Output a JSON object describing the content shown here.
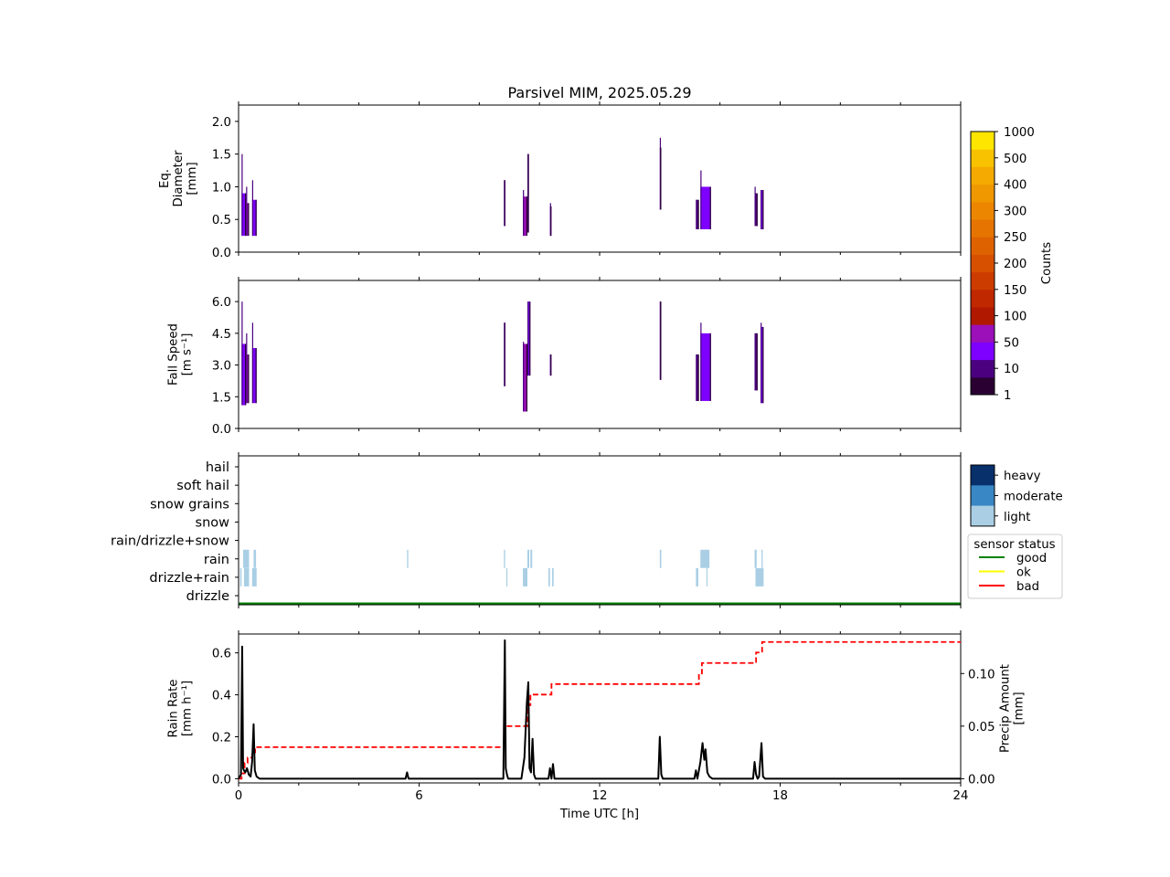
{
  "chart_data": {
    "title": "Parsivel MIM, 2025.05.29",
    "x_axis": {
      "label": "Time UTC [h]",
      "ticks": [
        0,
        6,
        12,
        18,
        24
      ],
      "range": [
        0,
        24
      ]
    },
    "colors": {
      "counts_scale": [
        "#2a0033",
        "#4b0080",
        "#7e00ff",
        "#9b10b8",
        "#b01800",
        "#c02800",
        "#cc3c00",
        "#d65000",
        "#df6200",
        "#e67400",
        "#ec8600",
        "#f09800",
        "#f4aa00",
        "#f8c200",
        "#ffe600"
      ],
      "light": "#aacfe5",
      "moderate": "#3a87c5",
      "heavy": "#08306b",
      "rate_line": "#000000",
      "precip_line": "#ff0000"
    },
    "panels": [
      {
        "type": "heatmap",
        "ylabel": [
          "Eq.",
          "Diameter",
          "[mm]"
        ],
        "yticks": [
          "0.0",
          "0.5",
          "1.0",
          "1.5",
          "2.0"
        ],
        "ylim": [
          0,
          2.25
        ],
        "events": [
          {
            "t0": 0.1,
            "t1": 0.25,
            "ymin": 0.25,
            "ymax": 0.9,
            "peak": 1.5,
            "level": 2
          },
          {
            "t0": 0.25,
            "t1": 0.35,
            "ymin": 0.25,
            "ymax": 0.75,
            "peak": 1.0,
            "level": 3
          },
          {
            "t0": 0.45,
            "t1": 0.6,
            "ymin": 0.25,
            "ymax": 0.8,
            "peak": 1.1,
            "level": 2
          },
          {
            "t0": 8.82,
            "t1": 8.86,
            "ymin": 0.4,
            "ymax": 1.1,
            "peak": 1.1,
            "level": 2
          },
          {
            "t0": 9.45,
            "t1": 9.6,
            "ymin": 0.25,
            "ymax": 0.85,
            "peak": 0.95,
            "level": 3
          },
          {
            "t0": 9.6,
            "t1": 9.65,
            "ymin": 0.3,
            "ymax": 1.5,
            "peak": 1.5,
            "level": 2
          },
          {
            "t0": 10.35,
            "t1": 10.4,
            "ymin": 0.25,
            "ymax": 0.7,
            "peak": 0.75,
            "level": 2
          },
          {
            "t0": 14.0,
            "t1": 14.05,
            "ymin": 0.65,
            "ymax": 1.6,
            "peak": 1.75,
            "level": 1
          },
          {
            "t0": 15.2,
            "t1": 15.3,
            "ymin": 0.35,
            "ymax": 0.8,
            "peak": 0.8,
            "level": 1
          },
          {
            "t0": 15.35,
            "t1": 15.7,
            "ymin": 0.35,
            "ymax": 1.0,
            "peak": 1.25,
            "level": 2
          },
          {
            "t0": 17.15,
            "t1": 17.25,
            "ymin": 0.4,
            "ymax": 0.9,
            "peak": 1.0,
            "level": 1
          },
          {
            "t0": 17.35,
            "t1": 17.45,
            "ymin": 0.35,
            "ymax": 0.95,
            "peak": 0.95,
            "level": 2
          }
        ]
      },
      {
        "type": "heatmap",
        "ylabel": [
          "Fall Speed",
          "[m s⁻¹]"
        ],
        "yticks": [
          "0.0",
          "1.5",
          "3.0",
          "4.5",
          "6.0"
        ],
        "ylim": [
          0,
          7.0
        ],
        "events": [
          {
            "t0": 0.1,
            "t1": 0.25,
            "ymin": 1.1,
            "ymax": 4.0,
            "peak": 6.0,
            "level": 2
          },
          {
            "t0": 0.25,
            "t1": 0.35,
            "ymin": 1.2,
            "ymax": 3.5,
            "peak": 4.5,
            "level": 3
          },
          {
            "t0": 0.45,
            "t1": 0.6,
            "ymin": 1.2,
            "ymax": 3.8,
            "peak": 5.0,
            "level": 2
          },
          {
            "t0": 8.82,
            "t1": 8.86,
            "ymin": 2.0,
            "ymax": 5.0,
            "peak": 5.0,
            "level": 2
          },
          {
            "t0": 9.45,
            "t1": 9.6,
            "ymin": 0.8,
            "ymax": 4.0,
            "peak": 4.1,
            "level": 3
          },
          {
            "t0": 9.6,
            "t1": 9.7,
            "ymin": 2.5,
            "ymax": 6.0,
            "peak": 6.0,
            "level": 2
          },
          {
            "t0": 10.35,
            "t1": 10.4,
            "ymin": 2.5,
            "ymax": 3.5,
            "peak": 3.5,
            "level": 2
          },
          {
            "t0": 14.0,
            "t1": 14.05,
            "ymin": 2.3,
            "ymax": 6.0,
            "peak": 6.0,
            "level": 1
          },
          {
            "t0": 15.2,
            "t1": 15.3,
            "ymin": 1.3,
            "ymax": 3.5,
            "peak": 3.5,
            "level": 1
          },
          {
            "t0": 15.35,
            "t1": 15.7,
            "ymin": 1.3,
            "ymax": 4.5,
            "peak": 5.0,
            "level": 2
          },
          {
            "t0": 17.15,
            "t1": 17.25,
            "ymin": 1.8,
            "ymax": 4.5,
            "peak": 4.5,
            "level": 1
          },
          {
            "t0": 17.35,
            "t1": 17.45,
            "ymin": 1.2,
            "ymax": 4.8,
            "peak": 5.0,
            "level": 2
          }
        ]
      },
      {
        "type": "category",
        "categories": [
          "hail",
          "soft hail",
          "snow grains",
          "snow",
          "rain/drizzle+snow",
          "rain",
          "drizzle+rain",
          "drizzle"
        ],
        "events": [
          {
            "cat": "rain",
            "t0": 0.15,
            "t1": 0.35
          },
          {
            "cat": "rain",
            "t0": 0.5,
            "t1": 0.58
          },
          {
            "cat": "drizzle+rain",
            "t0": 0.05,
            "t1": 0.1
          },
          {
            "cat": "drizzle+rain",
            "t0": 0.18,
            "t1": 0.35
          },
          {
            "cat": "drizzle+rain",
            "t0": 0.45,
            "t1": 0.6
          },
          {
            "cat": "rain",
            "t0": 5.6,
            "t1": 5.64
          },
          {
            "cat": "rain",
            "t0": 8.82,
            "t1": 8.86
          },
          {
            "cat": "drizzle+rain",
            "t0": 8.9,
            "t1": 8.93
          },
          {
            "cat": "rain",
            "t0": 9.6,
            "t1": 9.66
          },
          {
            "cat": "rain",
            "t0": 9.7,
            "t1": 9.76
          },
          {
            "cat": "drizzle+rain",
            "t0": 9.45,
            "t1": 9.6
          },
          {
            "cat": "drizzle+rain",
            "t0": 10.3,
            "t1": 10.35
          },
          {
            "cat": "drizzle+rain",
            "t0": 10.42,
            "t1": 10.47
          },
          {
            "cat": "rain",
            "t0": 14.0,
            "t1": 14.05
          },
          {
            "cat": "rain",
            "t0": 15.35,
            "t1": 15.65
          },
          {
            "cat": "drizzle+rain",
            "t0": 15.2,
            "t1": 15.28
          },
          {
            "cat": "drizzle+rain",
            "t0": 15.55,
            "t1": 15.58
          },
          {
            "cat": "rain",
            "t0": 17.15,
            "t1": 17.22
          },
          {
            "cat": "rain",
            "t0": 17.38,
            "t1": 17.42
          },
          {
            "cat": "drizzle+rain",
            "t0": 17.18,
            "t1": 17.45
          }
        ],
        "status": {
          "value": "good",
          "t0": 0,
          "t1": 24
        }
      },
      {
        "type": "line",
        "ylabel": [
          "Rain Rate",
          "[mm h⁻¹]"
        ],
        "yticks": [
          "0.0",
          "0.2",
          "0.4",
          "0.6"
        ],
        "ylim": [
          -0.02,
          0.69
        ],
        "y2label": [
          "Precip Amount",
          "[mm]"
        ],
        "y2ticks": [
          "0.00",
          "0.05",
          "0.10"
        ],
        "y2lim": [
          -0.004,
          0.1376
        ],
        "rate": {
          "x": [
            0,
            0.08,
            0.12,
            0.15,
            0.18,
            0.22,
            0.28,
            0.34,
            0.4,
            0.45,
            0.5,
            0.54,
            0.6,
            0.7,
            5.55,
            5.6,
            5.65,
            8.8,
            8.85,
            8.88,
            8.92,
            8.96,
            9.0,
            9.4,
            9.5,
            9.58,
            9.63,
            9.67,
            9.72,
            9.77,
            9.82,
            9.87,
            10.3,
            10.35,
            10.4,
            10.45,
            10.5,
            10.55,
            13.95,
            14.0,
            14.05,
            14.1,
            15.15,
            15.2,
            15.25,
            15.35,
            15.42,
            15.48,
            15.52,
            15.58,
            15.65,
            15.75,
            17.1,
            17.15,
            17.2,
            17.25,
            17.3,
            17.38,
            17.43,
            17.5,
            24
          ],
          "y": [
            0,
            0.02,
            0.63,
            0.05,
            0.04,
            0.03,
            0.05,
            0.02,
            0.01,
            0.08,
            0.26,
            0.04,
            0.01,
            0,
            0,
            0.03,
            0,
            0,
            0.66,
            0.05,
            0.02,
            0,
            0,
            0,
            0.1,
            0.36,
            0.46,
            0.05,
            0.03,
            0.19,
            0.02,
            0,
            0,
            0.05,
            0,
            0.07,
            0,
            0,
            0,
            0.2,
            0.02,
            0,
            0,
            0.04,
            0,
            0.08,
            0.17,
            0.09,
            0.14,
            0.03,
            0.01,
            0,
            0,
            0.08,
            0.02,
            0,
            0.01,
            0.17,
            0.01,
            0,
            0
          ],
          "name": ""
        },
        "precip": {
          "x": [
            0,
            0.1,
            0.2,
            0.3,
            0.45,
            0.55,
            0.65,
            8.82,
            9.6,
            9.7,
            10.4,
            15.3,
            15.4,
            17.2,
            17.4,
            24
          ],
          "y": [
            0,
            0.005,
            0.015,
            0.02,
            0.025,
            0.03,
            0.03,
            0.05,
            0.07,
            0.08,
            0.09,
            0.1,
            0.11,
            0.12,
            0.13,
            0.13
          ]
        }
      }
    ],
    "colorbar": {
      "label": "Counts",
      "ticks": [
        "1000",
        "500",
        "400",
        "300",
        "250",
        "200",
        "150",
        "100",
        "50",
        "10",
        "1"
      ]
    },
    "intensity_legend": [
      "heavy",
      "moderate",
      "light"
    ],
    "status_legend": {
      "title": "sensor status",
      "items": [
        {
          "label": "good",
          "color": "#008000"
        },
        {
          "label": "ok",
          "color": "#ffff00"
        },
        {
          "label": "bad",
          "color": "#ff0000"
        }
      ]
    }
  }
}
